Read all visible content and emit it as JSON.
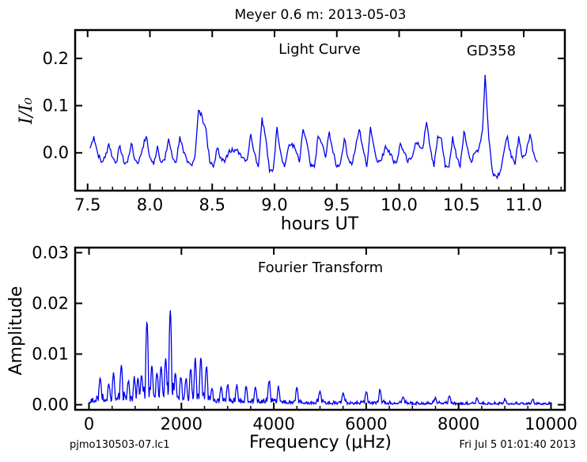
{
  "suptitle": "Meyer 0.6 m:  2013-05-03",
  "footer_left": "pjmo130503-07.lc1",
  "footer_right": "Fri Jul  5 01:01:40 2013",
  "colors": {
    "line": "#0000ee",
    "axes": "#000000",
    "background": "#ffffff"
  },
  "chart_data": [
    {
      "type": "line",
      "annotations": [
        "Light Curve",
        "GD358"
      ],
      "xlabel": "hours UT",
      "ylabel": "I/I₀",
      "xlim": [
        7.4,
        11.33
      ],
      "ylim": [
        -0.08,
        0.26
      ],
      "xticks": [
        7.5,
        8.0,
        8.5,
        9.0,
        9.5,
        10.0,
        10.5,
        11.0
      ],
      "xtick_labels": [
        "7.5",
        "8.0",
        "8.5",
        "9.0",
        "9.5",
        "10.0",
        "10.5",
        "11.0"
      ],
      "yticks": [
        0.0,
        0.1,
        0.2
      ],
      "ytick_labels": [
        "0.0",
        "0.1",
        "0.2"
      ],
      "series": [
        {
          "x": [
            7.52,
            7.55,
            7.58,
            7.61,
            7.64,
            7.67,
            7.7,
            7.73,
            7.76,
            7.79,
            7.82,
            7.85,
            7.88,
            7.91,
            7.94,
            7.97,
            8.0,
            8.03,
            8.06,
            8.09,
            8.12,
            8.15,
            8.18,
            8.21,
            8.24,
            8.27,
            8.3,
            8.33,
            8.36,
            8.39,
            8.42,
            8.45,
            8.48,
            8.51,
            8.54,
            8.57,
            8.6,
            8.63,
            8.66,
            8.69,
            8.72,
            8.75,
            8.78,
            8.81,
            8.84,
            8.87,
            8.9,
            8.93,
            8.96,
            8.99,
            9.02,
            9.05,
            9.08,
            9.11,
            9.14,
            9.17,
            9.2,
            9.23,
            9.26,
            9.29,
            9.32,
            9.35,
            9.38,
            9.41,
            9.44,
            9.47,
            9.5,
            9.53,
            9.56,
            9.59,
            9.62,
            9.65,
            9.68,
            9.71,
            9.74,
            9.77,
            9.8,
            9.83,
            9.86,
            9.89,
            9.92,
            9.95,
            9.98,
            10.01,
            10.04,
            10.07,
            10.1,
            10.13,
            10.16,
            10.19,
            10.22,
            10.25,
            10.28,
            10.31,
            10.34,
            10.37,
            10.4,
            10.43,
            10.46,
            10.49,
            10.52,
            10.55,
            10.58,
            10.61,
            10.64,
            10.67,
            10.69,
            10.72,
            10.75,
            10.78,
            10.81,
            10.84,
            10.87,
            10.9,
            10.93,
            10.96,
            10.99,
            11.02,
            11.05,
            11.08,
            11.11
          ],
          "y": [
            0.01,
            0.035,
            0.0,
            -0.02,
            -0.01,
            0.02,
            -0.01,
            -0.02,
            0.015,
            -0.02,
            -0.02,
            0.02,
            -0.015,
            -0.02,
            0.01,
            0.035,
            -0.01,
            -0.025,
            0.015,
            -0.02,
            -0.015,
            0.03,
            -0.01,
            -0.02,
            0.035,
            0.0,
            -0.02,
            -0.025,
            -0.01,
            0.09,
            0.075,
            0.05,
            -0.02,
            -0.03,
            0.01,
            -0.01,
            -0.02,
            0.0,
            0.01,
            0.005,
            0.0,
            -0.01,
            -0.015,
            0.04,
            0.0,
            -0.03,
            0.075,
            0.03,
            -0.04,
            -0.035,
            0.055,
            0.0,
            -0.03,
            0.01,
            0.02,
            0.005,
            -0.02,
            0.05,
            0.02,
            -0.03,
            -0.03,
            0.035,
            0.02,
            -0.01,
            0.045,
            0.0,
            -0.03,
            -0.02,
            0.03,
            -0.01,
            -0.025,
            0.01,
            0.05,
            0.01,
            -0.03,
            0.055,
            0.01,
            -0.02,
            -0.015,
            0.015,
            0.005,
            -0.015,
            -0.02,
            0.02,
            0.0,
            -0.02,
            -0.01,
            0.02,
            0.015,
            0.01,
            0.065,
            0.01,
            -0.03,
            0.035,
            0.03,
            -0.03,
            -0.03,
            0.035,
            -0.01,
            -0.03,
            0.045,
            0.01,
            -0.02,
            0.0,
            0.01,
            0.05,
            0.165,
            0.03,
            -0.04,
            -0.05,
            -0.04,
            0.0,
            0.035,
            -0.01,
            -0.025,
            0.035,
            -0.01,
            0.0,
            0.04,
            0.0,
            -0.02
          ]
        }
      ]
    },
    {
      "type": "line",
      "annotations": [
        "Fourier Transform"
      ],
      "xlabel": "Frequency (μHz)",
      "ylabel": "Amplitude",
      "xlim": [
        -300,
        10300
      ],
      "ylim": [
        -0.001,
        0.031
      ],
      "xticks": [
        0,
        2000,
        4000,
        6000,
        8000,
        10000
      ],
      "xtick_labels": [
        "0",
        "2000",
        "4000",
        "6000",
        "8000",
        "10000"
      ],
      "yticks": [
        0.0,
        0.01,
        0.02,
        0.03
      ],
      "ytick_labels": [
        "0.00",
        "0.01",
        "0.02",
        "0.03"
      ],
      "series": [
        {
          "peaks": [
            {
              "f": 240,
              "a": 0.0052
            },
            {
              "f": 430,
              "a": 0.0034
            },
            {
              "f": 530,
              "a": 0.0058
            },
            {
              "f": 700,
              "a": 0.0076
            },
            {
              "f": 850,
              "a": 0.0045
            },
            {
              "f": 980,
              "a": 0.005
            },
            {
              "f": 1060,
              "a": 0.005
            },
            {
              "f": 1140,
              "a": 0.0052
            },
            {
              "f": 1255,
              "a": 0.0161
            },
            {
              "f": 1360,
              "a": 0.007
            },
            {
              "f": 1470,
              "a": 0.006
            },
            {
              "f": 1560,
              "a": 0.0074
            },
            {
              "f": 1660,
              "a": 0.009
            },
            {
              "f": 1760,
              "a": 0.0185
            },
            {
              "f": 1870,
              "a": 0.0055
            },
            {
              "f": 1990,
              "a": 0.005
            },
            {
              "f": 2100,
              "a": 0.005
            },
            {
              "f": 2200,
              "a": 0.0065
            },
            {
              "f": 2300,
              "a": 0.0086
            },
            {
              "f": 2420,
              "a": 0.0088
            },
            {
              "f": 2540,
              "a": 0.0072
            },
            {
              "f": 2660,
              "a": 0.003
            },
            {
              "f": 2860,
              "a": 0.0035
            },
            {
              "f": 3000,
              "a": 0.0038
            },
            {
              "f": 3200,
              "a": 0.0036
            },
            {
              "f": 3400,
              "a": 0.003
            },
            {
              "f": 3600,
              "a": 0.0032
            },
            {
              "f": 3900,
              "a": 0.0045
            },
            {
              "f": 4100,
              "a": 0.0032
            },
            {
              "f": 4500,
              "a": 0.003
            },
            {
              "f": 5000,
              "a": 0.0025
            },
            {
              "f": 5500,
              "a": 0.0022
            },
            {
              "f": 6000,
              "a": 0.0024
            },
            {
              "f": 6300,
              "a": 0.0028
            },
            {
              "f": 6800,
              "a": 0.0015
            },
            {
              "f": 7500,
              "a": 0.0012
            },
            {
              "f": 7800,
              "a": 0.0015
            },
            {
              "f": 8400,
              "a": 0.0011
            },
            {
              "f": 9000,
              "a": 0.0009
            },
            {
              "f": 9600,
              "a": 0.0008
            }
          ]
        }
      ]
    }
  ]
}
